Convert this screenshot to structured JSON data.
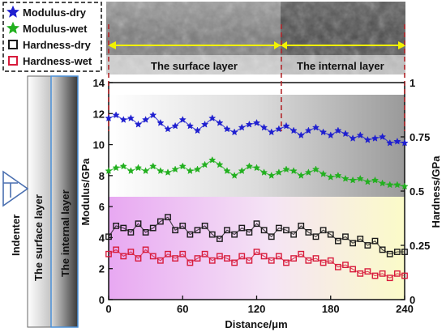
{
  "legend": [
    {
      "label": "Modulus-dry",
      "color": "#1f1fd0",
      "marker": "star"
    },
    {
      "label": "Modulus-wet",
      "color": "#22b01f",
      "marker": "star"
    },
    {
      "label": "Hardness-dry",
      "color": "#1a1a1a",
      "marker": "square"
    },
    {
      "label": "Hardness-wet",
      "color": "#d81c3c",
      "marker": "square"
    }
  ],
  "sem_labels": {
    "surface": "The surface layer",
    "internal": "The internal layer"
  },
  "schematic": {
    "indenter": "Indenter",
    "surface_layer": "The surface layer",
    "internal_layer": "The internal layer"
  },
  "chart_data": {
    "type": "scatter",
    "xlabel": "Distance/μm",
    "ylabel": "Modulus/GPa",
    "y2label": "Hardness/GPa",
    "xlim": [
      0,
      240
    ],
    "ylim": [
      0,
      14
    ],
    "y2lim": [
      0,
      1
    ],
    "x_ticks": [
      0,
      60,
      120,
      180,
      240
    ],
    "y_ticks": [
      0,
      2,
      4,
      6,
      8,
      10,
      12,
      14
    ],
    "y2_ticks": [
      0,
      0.25,
      0.5,
      0.75,
      1
    ],
    "y2_tick_labels": [
      "0",
      "0.25",
      "0.5",
      "0.75",
      "1"
    ],
    "layer_boundary_x": 140,
    "grid": false,
    "series": [
      {
        "name": "Modulus-dry",
        "axis": "left",
        "color": "#1f1fd0",
        "marker": "star",
        "x": [
          0,
          6,
          12,
          18,
          24,
          30,
          36,
          42,
          48,
          54,
          60,
          66,
          72,
          78,
          84,
          90,
          96,
          102,
          108,
          114,
          120,
          126,
          132,
          138,
          144,
          150,
          156,
          162,
          168,
          174,
          180,
          186,
          192,
          198,
          204,
          210,
          216,
          222,
          228,
          234,
          240
        ],
        "y": [
          11.7,
          11.9,
          11.6,
          11.7,
          11.3,
          11.6,
          11.9,
          11.4,
          11.0,
          11.2,
          11.6,
          11.2,
          10.9,
          11.3,
          11.7,
          11.4,
          11.0,
          10.8,
          11.1,
          11.3,
          11.4,
          11.1,
          10.8,
          11.0,
          11.2,
          10.9,
          10.6,
          10.9,
          11.1,
          10.8,
          10.6,
          10.9,
          10.7,
          10.4,
          10.6,
          10.3,
          10.4,
          10.5,
          10.1,
          10.2,
          10.1
        ]
      },
      {
        "name": "Modulus-wet",
        "axis": "left",
        "color": "#22b01f",
        "marker": "star",
        "x": [
          0,
          6,
          12,
          18,
          24,
          30,
          36,
          42,
          48,
          54,
          60,
          66,
          72,
          78,
          84,
          90,
          96,
          102,
          108,
          114,
          120,
          126,
          132,
          138,
          144,
          150,
          156,
          162,
          168,
          174,
          180,
          186,
          192,
          198,
          204,
          210,
          216,
          222,
          228,
          234,
          240
        ],
        "y": [
          8.3,
          8.5,
          8.6,
          8.3,
          8.5,
          8.3,
          8.6,
          8.3,
          8.2,
          8.4,
          8.6,
          8.3,
          8.4,
          8.7,
          9.0,
          8.7,
          8.3,
          8.0,
          8.3,
          8.6,
          8.5,
          8.2,
          8.0,
          8.2,
          8.4,
          8.3,
          8.0,
          8.2,
          8.4,
          8.1,
          7.9,
          8.0,
          7.8,
          7.7,
          7.8,
          7.6,
          7.7,
          7.5,
          7.4,
          7.4,
          7.3
        ]
      },
      {
        "name": "Hardness-dry",
        "axis": "right",
        "color": "#1a1a1a",
        "marker": "square",
        "x": [
          0,
          6,
          12,
          18,
          24,
          30,
          36,
          42,
          48,
          54,
          60,
          66,
          72,
          78,
          84,
          90,
          96,
          102,
          108,
          114,
          120,
          126,
          132,
          138,
          144,
          150,
          156,
          162,
          168,
          174,
          180,
          186,
          192,
          198,
          204,
          210,
          216,
          222,
          228,
          234,
          240
        ],
        "y": [
          0.29,
          0.34,
          0.33,
          0.31,
          0.35,
          0.31,
          0.33,
          0.36,
          0.38,
          0.32,
          0.34,
          0.3,
          0.32,
          0.34,
          0.3,
          0.28,
          0.32,
          0.3,
          0.33,
          0.31,
          0.35,
          0.32,
          0.29,
          0.33,
          0.32,
          0.3,
          0.34,
          0.31,
          0.29,
          0.32,
          0.3,
          0.27,
          0.29,
          0.26,
          0.28,
          0.25,
          0.27,
          0.23,
          0.21,
          0.22,
          0.22
        ]
      },
      {
        "name": "Hardness-wet",
        "axis": "right",
        "color": "#d81c3c",
        "marker": "square",
        "x": [
          0,
          6,
          12,
          18,
          24,
          30,
          36,
          42,
          48,
          54,
          60,
          66,
          72,
          78,
          84,
          90,
          96,
          102,
          108,
          114,
          120,
          126,
          132,
          138,
          144,
          150,
          156,
          162,
          168,
          174,
          180,
          186,
          192,
          198,
          204,
          210,
          216,
          222,
          228,
          234,
          240
        ],
        "y": [
          0.21,
          0.23,
          0.2,
          0.22,
          0.19,
          0.23,
          0.2,
          0.18,
          0.21,
          0.19,
          0.21,
          0.17,
          0.19,
          0.21,
          0.18,
          0.2,
          0.19,
          0.17,
          0.2,
          0.18,
          0.22,
          0.2,
          0.18,
          0.2,
          0.17,
          0.19,
          0.21,
          0.18,
          0.19,
          0.17,
          0.18,
          0.15,
          0.16,
          0.14,
          0.12,
          0.13,
          0.11,
          0.12,
          0.1,
          0.12,
          0.11
        ]
      }
    ]
  }
}
